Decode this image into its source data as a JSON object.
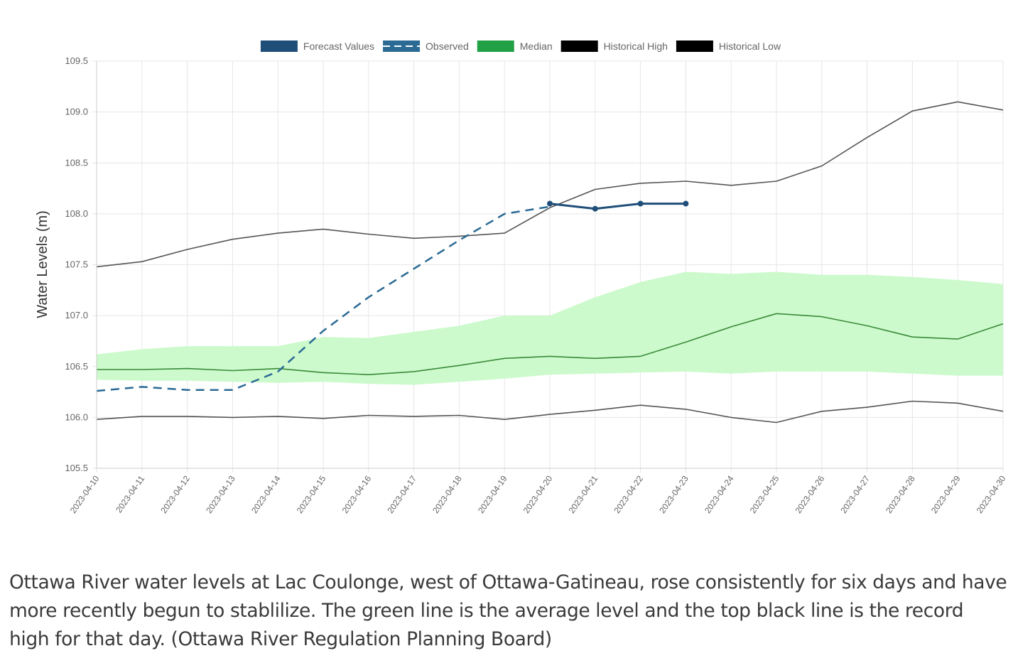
{
  "caption": "Ottawa River water levels at Lac Coulonge, west of Ottawa-Gatineau, rose consistently for six days and have more recently begun to stablilize. The green line is the average level and the top black line is the record high for that day. (Ottawa River Regulation Planning Board)",
  "chart_data": {
    "type": "line",
    "title": "",
    "xlabel": "",
    "ylabel": "Water Levels (m)",
    "ylim": [
      105.5,
      109.5
    ],
    "yticks": [
      "109.5",
      "109.0",
      "108.5",
      "108.0",
      "107.5",
      "107.0",
      "106.5",
      "106.0",
      "105.5"
    ],
    "grid": true,
    "legend_position": "top-center",
    "categories": [
      "2023-04-10",
      "2023-04-11",
      "2023-04-12",
      "2023-04-13",
      "2023-04-14",
      "2023-04-15",
      "2023-04-16",
      "2023-04-17",
      "2023-04-18",
      "2023-04-19",
      "2023-04-20",
      "2023-04-21",
      "2023-04-22",
      "2023-04-23",
      "2023-04-24",
      "2023-04-25",
      "2023-04-26",
      "2023-04-27",
      "2023-04-28",
      "2023-04-29",
      "2023-04-30"
    ],
    "series": [
      {
        "name": "Forecast Values",
        "color": "#1f4e79",
        "style": "solid-markers",
        "values": [
          null,
          null,
          null,
          null,
          null,
          null,
          null,
          null,
          null,
          null,
          108.1,
          108.05,
          108.1,
          108.1,
          null,
          null,
          null,
          null,
          null,
          null,
          null
        ]
      },
      {
        "name": "Observed",
        "color": "#2a6a94",
        "style": "dashed",
        "values": [
          106.26,
          106.3,
          106.27,
          106.27,
          106.45,
          106.85,
          107.18,
          107.46,
          107.74,
          108.0,
          108.07,
          null,
          null,
          null,
          null,
          null,
          null,
          null,
          null,
          null,
          null
        ]
      },
      {
        "name": "Median",
        "color": "#3a8a3a",
        "style": "solid",
        "values": [
          106.47,
          106.47,
          106.48,
          106.46,
          106.48,
          106.44,
          106.42,
          106.45,
          106.51,
          106.58,
          106.6,
          106.58,
          106.6,
          106.74,
          106.89,
          107.02,
          106.99,
          106.9,
          106.79,
          106.77,
          106.92
        ]
      },
      {
        "name": "Historical High",
        "color": "#555555",
        "style": "solid",
        "values": [
          107.48,
          107.53,
          107.65,
          107.75,
          107.81,
          107.85,
          107.8,
          107.76,
          107.78,
          107.81,
          108.06,
          108.24,
          108.3,
          108.32,
          108.28,
          108.32,
          108.47,
          108.75,
          109.01,
          109.1,
          109.02
        ]
      },
      {
        "name": "Historical Low",
        "color": "#555555",
        "style": "solid",
        "values": [
          105.98,
          106.01,
          106.01,
          106.0,
          106.01,
          105.99,
          106.02,
          106.01,
          106.02,
          105.98,
          106.03,
          106.07,
          106.12,
          106.08,
          106.0,
          105.95,
          106.06,
          106.1,
          106.16,
          106.14,
          106.06
        ]
      }
    ],
    "band": {
      "color": "#ccfacc",
      "upper": [
        106.62,
        106.67,
        106.7,
        106.7,
        106.7,
        106.79,
        106.78,
        106.84,
        106.9,
        107.0,
        107.0,
        107.18,
        107.33,
        107.43,
        107.41,
        107.43,
        107.4,
        107.4,
        107.38,
        107.35,
        107.31
      ],
      "lower": [
        106.37,
        106.36,
        106.36,
        106.35,
        106.34,
        106.35,
        106.33,
        106.32,
        106.35,
        106.38,
        106.42,
        106.43,
        106.44,
        106.45,
        106.43,
        106.45,
        106.45,
        106.45,
        106.43,
        106.41,
        106.41
      ]
    },
    "legend": [
      {
        "label": "Forecast Values",
        "swatch": "#1f4e79",
        "style": "solid"
      },
      {
        "label": "Observed",
        "swatch": "#2a6a94",
        "style": "dashed"
      },
      {
        "label": "Median",
        "swatch": "#22a046",
        "style": "solid"
      },
      {
        "label": "Historical High",
        "swatch": "#000000",
        "style": "solid"
      },
      {
        "label": "Historical Low",
        "swatch": "#000000",
        "style": "solid"
      }
    ]
  }
}
